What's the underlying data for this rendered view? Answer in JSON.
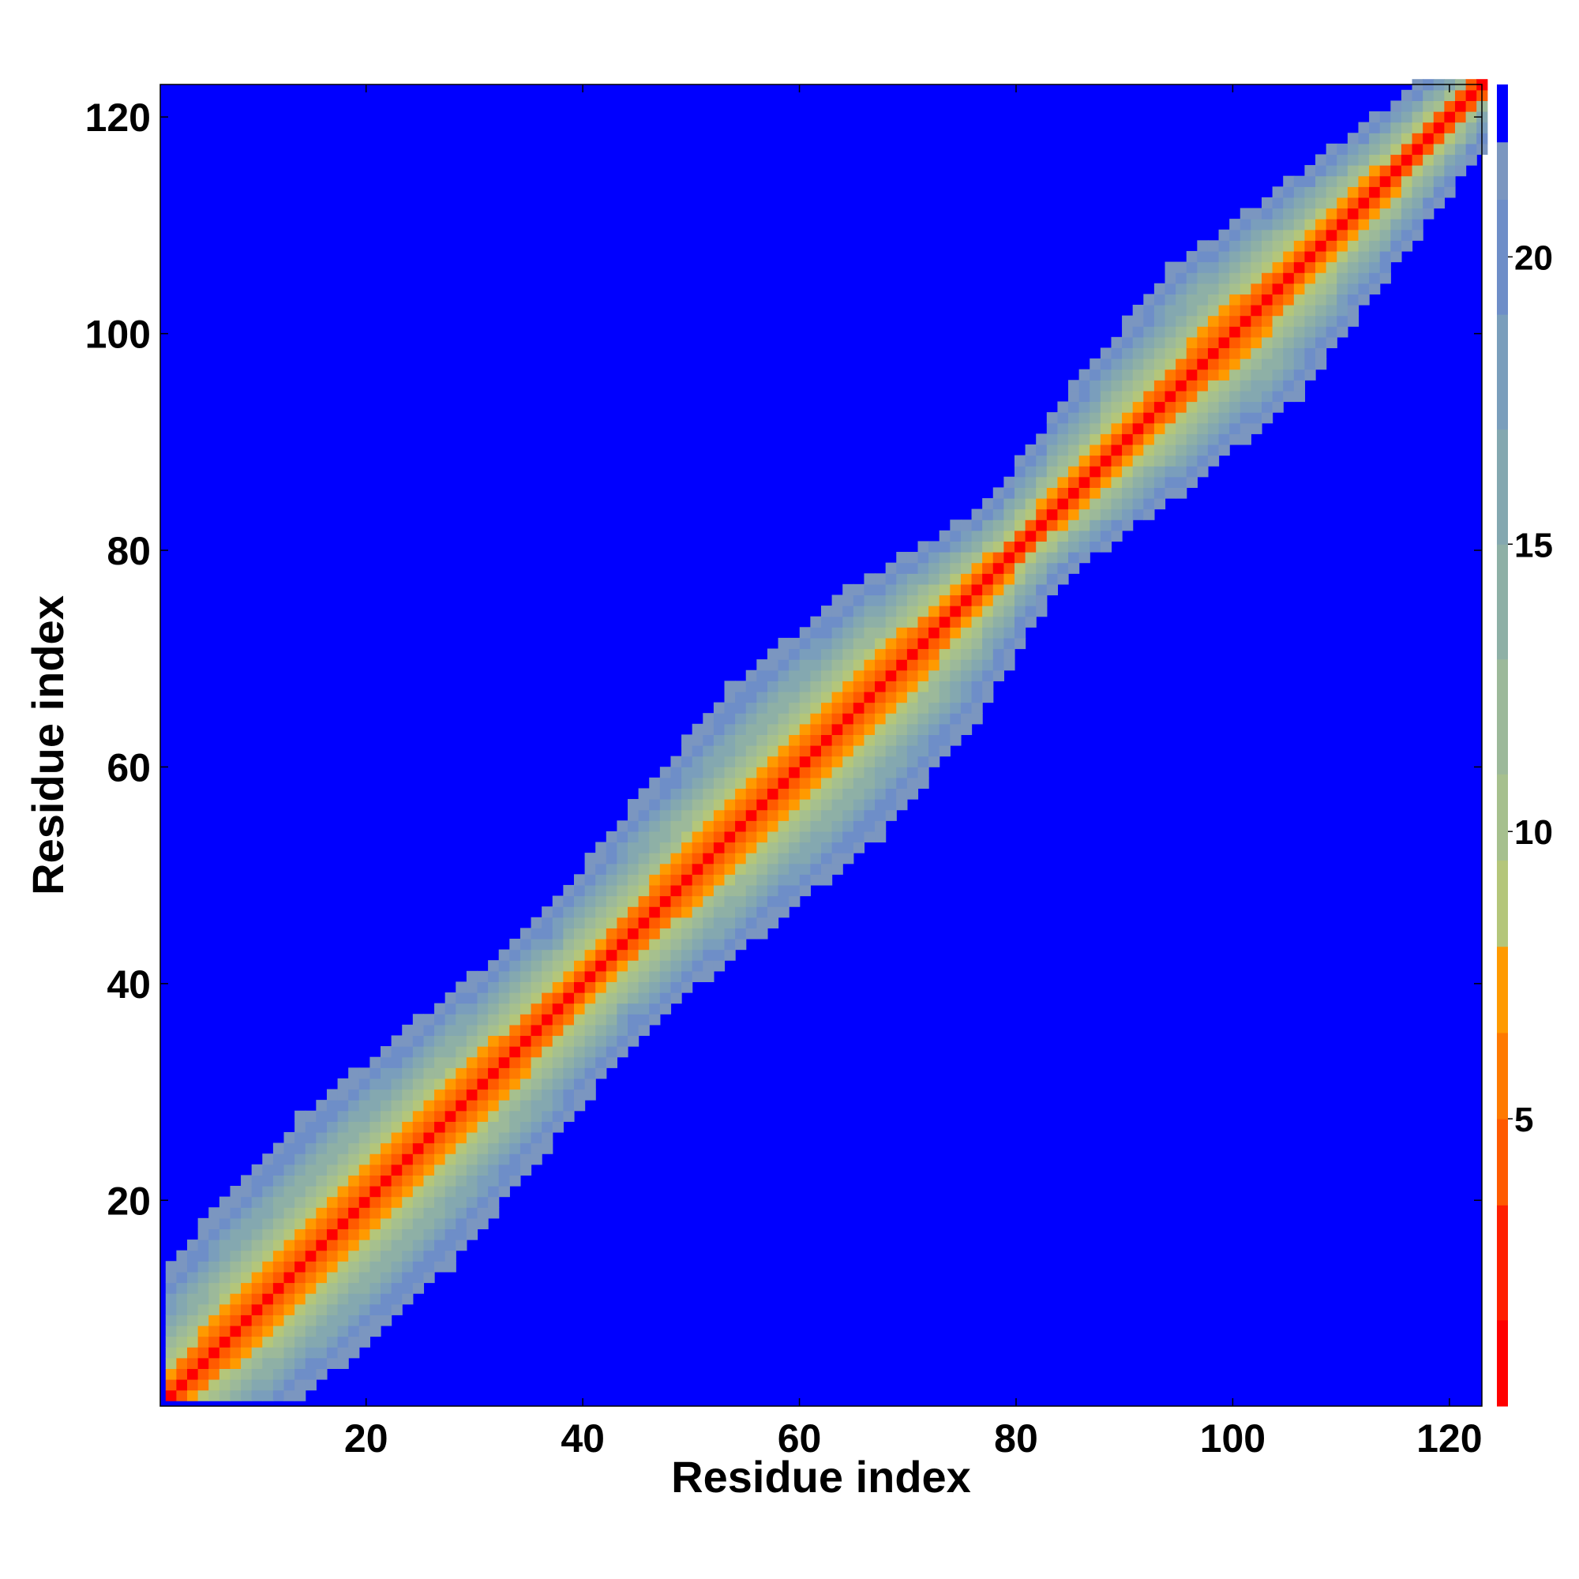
{
  "chart_data": {
    "type": "heatmap",
    "title": "",
    "xlabel": "Residue index",
    "ylabel": "Residue index",
    "n_residues": 123,
    "xlim": [
      1,
      123
    ],
    "ylim": [
      1,
      123
    ],
    "x_ticks": [
      20,
      40,
      60,
      80,
      100,
      120
    ],
    "y_ticks": [
      20,
      40,
      60,
      80,
      100,
      120
    ],
    "grid": false,
    "colorbar": {
      "placement": "right",
      "range": [
        0,
        23
      ],
      "ticks": [
        5,
        10,
        15,
        20
      ],
      "levels": [
        {
          "from": 0,
          "to": 1.5,
          "color": "#ff0000"
        },
        {
          "from": 1.5,
          "to": 3.5,
          "color": "#ff1f00"
        },
        {
          "from": 3.5,
          "to": 5.0,
          "color": "#ff5a00"
        },
        {
          "from": 5.0,
          "to": 6.5,
          "color": "#ff7a00"
        },
        {
          "from": 6.5,
          "to": 8.0,
          "color": "#ff9a00"
        },
        {
          "from": 8.0,
          "to": 9.5,
          "color": "#b4c67a"
        },
        {
          "from": 9.5,
          "to": 11.0,
          "color": "#a6c08e"
        },
        {
          "from": 11.0,
          "to": 13.0,
          "color": "#9cb99a"
        },
        {
          "from": 13.0,
          "to": 15.0,
          "color": "#8eb0a6"
        },
        {
          "from": 15.0,
          "to": 17.0,
          "color": "#84a8b0"
        },
        {
          "from": 17.0,
          "to": 19.0,
          "color": "#7a9ebc"
        },
        {
          "from": 19.0,
          "to": 21.0,
          "color": "#6e8ec8"
        },
        {
          "from": 21.0,
          "to": 22.0,
          "color": "#7b96c0"
        },
        {
          "from": 22.0,
          "to": 23.0,
          "color": "#0000ff"
        }
      ]
    },
    "band_profile": {
      "note_values": "approximate distance (colorbar units) as a function of |i-j| along the diagonal band",
      "offsets": [
        0,
        1,
        2,
        3,
        4,
        5,
        6,
        7,
        8,
        9,
        10,
        11,
        12,
        13,
        14
      ],
      "values": [
        0.5,
        3.8,
        5.5,
        7.0,
        8.5,
        10.0,
        11.5,
        13.0,
        14.5,
        16.0,
        17.5,
        19.0,
        20.5,
        21.5,
        23.0
      ]
    },
    "band_width_by_residue": {
      "residue": [
        1,
        10,
        20,
        30,
        40,
        50,
        60,
        70,
        80,
        90,
        100,
        110,
        120,
        123
      ],
      "max_offset": [
        10,
        13,
        14,
        12,
        10,
        12,
        14,
        12,
        7,
        10,
        12,
        9,
        6,
        4
      ]
    }
  }
}
